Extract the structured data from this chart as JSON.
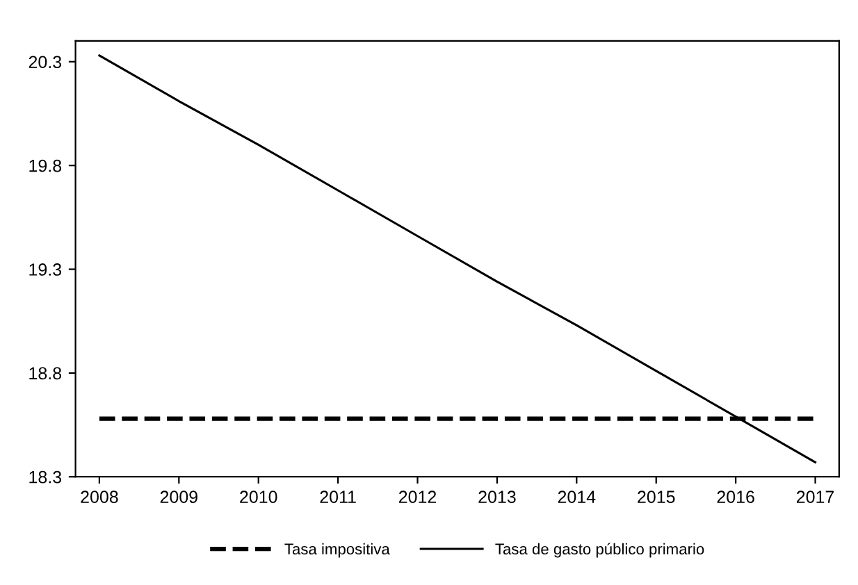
{
  "chart_data": {
    "type": "line",
    "categories": [
      "2008",
      "2009",
      "2010",
      "2011",
      "2012",
      "2013",
      "2014",
      "2015",
      "2016",
      "2017"
    ],
    "series": [
      {
        "name": "Tasa impositiva",
        "color": "#000000",
        "line_style": "dashed",
        "values": [
          18.58,
          18.58,
          18.58,
          18.58,
          18.58,
          18.58,
          18.58,
          18.58,
          18.58,
          18.58
        ]
      },
      {
        "name": "Tasa de gasto público primario",
        "color": "#000000",
        "line_style": "solid",
        "values": [
          20.33,
          20.11,
          19.9,
          19.68,
          19.46,
          19.24,
          19.03,
          18.81,
          18.59,
          18.37
        ]
      }
    ],
    "ylim": [
      18.3,
      20.4
    ],
    "yticks": [
      18.3,
      18.8,
      19.3,
      19.8,
      20.3
    ],
    "grid": false,
    "legend": "bottom",
    "marker": "none"
  }
}
